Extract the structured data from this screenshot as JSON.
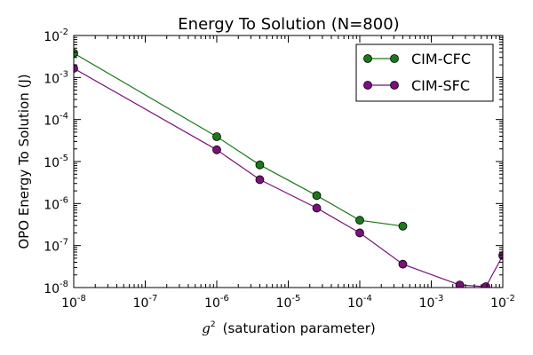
{
  "chart_data": {
    "type": "line",
    "title": "Energy To Solution (N=800)",
    "xlabel_symbol": "g",
    "xlabel_symbol_exp": "2",
    "xlabel": "(saturation parameter)",
    "ylabel": "OPO Energy To Solution (J)",
    "xscale": "log",
    "yscale": "log",
    "xlim": [
      1e-08,
      0.01
    ],
    "ylim": [
      1e-08,
      0.01
    ],
    "x_ticks": [
      {
        "value": 1e-08,
        "base": "10",
        "exp": "-8"
      },
      {
        "value": 1e-07,
        "base": "10",
        "exp": "-7"
      },
      {
        "value": 1e-06,
        "base": "10",
        "exp": "-6"
      },
      {
        "value": 1e-05,
        "base": "10",
        "exp": "-5"
      },
      {
        "value": 0.0001,
        "base": "10",
        "exp": "-4"
      },
      {
        "value": 0.001,
        "base": "10",
        "exp": "-3"
      },
      {
        "value": 0.01,
        "base": "10",
        "exp": "-2"
      }
    ],
    "y_ticks": [
      {
        "value": 1e-08,
        "base": "10",
        "exp": "-8"
      },
      {
        "value": 1e-07,
        "base": "10",
        "exp": "-7"
      },
      {
        "value": 1e-06,
        "base": "10",
        "exp": "-6"
      },
      {
        "value": 1e-05,
        "base": "10",
        "exp": "-5"
      },
      {
        "value": 0.0001,
        "base": "10",
        "exp": "-4"
      },
      {
        "value": 0.001,
        "base": "10",
        "exp": "-3"
      },
      {
        "value": 0.01,
        "base": "10",
        "exp": "-2"
      }
    ],
    "legend_position": "top-right",
    "grid": false,
    "series": [
      {
        "name": "CIM-CFC",
        "color": "#1a7a1a",
        "x": [
          1e-08,
          1e-06,
          4e-06,
          2.5e-05,
          0.0001,
          0.0004
        ],
        "y": [
          0.0038,
          3.9e-05,
          8.3e-06,
          1.55e-06,
          4e-07,
          2.9e-07
        ]
      },
      {
        "name": "CIM-SFC",
        "color": "#7b0f7b",
        "x": [
          1e-08,
          1e-06,
          4e-06,
          2.5e-05,
          0.0001,
          0.0004,
          0.0025,
          0.0058,
          0.01
        ],
        "y": [
          0.00165,
          1.9e-05,
          3.7e-06,
          7.8e-07,
          2e-07,
          3.6e-08,
          1.15e-08,
          1.05e-08,
          5.8e-08
        ]
      }
    ]
  }
}
